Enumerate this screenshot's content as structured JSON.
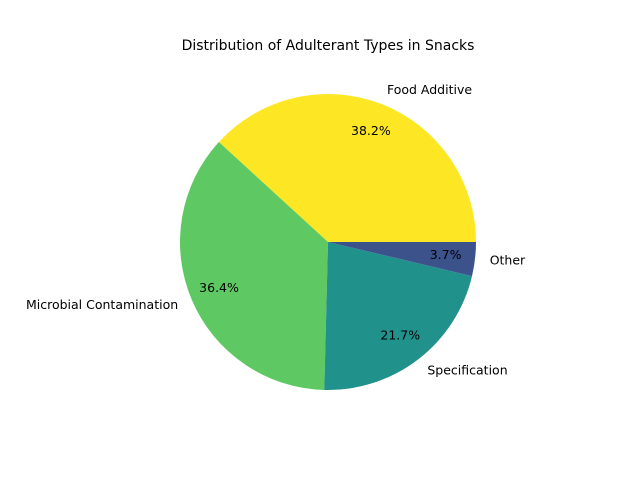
{
  "chart_data": {
    "type": "pie",
    "title": "Distribution of Adulterant Types in Snacks",
    "slices": [
      {
        "label": "Food Additive",
        "value": 38.2,
        "pct_text": "38.2%",
        "color": "#fde725"
      },
      {
        "label": "Microbial Contamination",
        "value": 36.4,
        "pct_text": "36.4%",
        "color": "#5ec962"
      },
      {
        "label": "Specification",
        "value": 21.7,
        "pct_text": "21.7%",
        "color": "#21918c"
      },
      {
        "label": "Other",
        "value": 3.7,
        "pct_text": "3.7%",
        "color": "#3b528b"
      }
    ],
    "start_angle_deg": 0,
    "direction": "counterclockwise",
    "legend": "none"
  }
}
